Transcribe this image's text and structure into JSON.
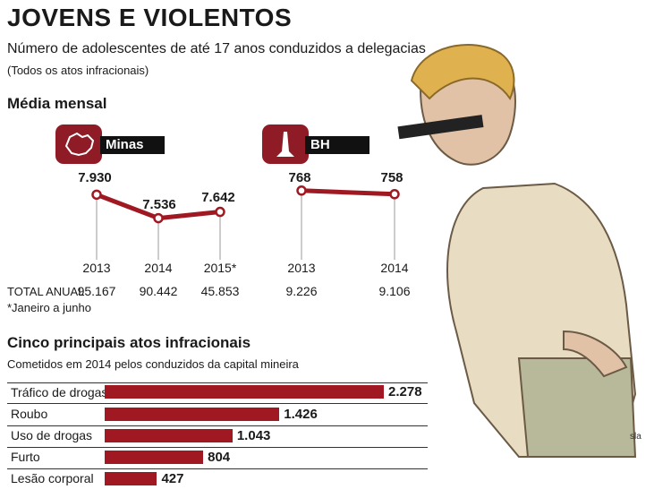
{
  "header": {
    "title": "JOVENS E VIOLENTOS",
    "subtitle": "Número de adolescentes de até 17 anos conduzidos a delegacias",
    "note": "(Todos os atos infracionais)"
  },
  "monthly": {
    "heading": "Média mensal",
    "total_label": "TOTAL ANUAL",
    "footnote": "*Janeiro a junho"
  },
  "ranking": {
    "heading": "Cinco principais atos infracionais",
    "subheading": "Cometidos em 2014 pelos conduzidos da capital mineira"
  },
  "illustration": {
    "signature": "sla"
  },
  "colors": {
    "accent": "#a01822",
    "emblem": "#8e1b26",
    "label_bg": "#111111"
  },
  "chart_data": [
    {
      "type": "line",
      "region": "Minas",
      "categories": [
        "2013",
        "2014",
        "2015*"
      ],
      "values": [
        7930,
        7536,
        7642
      ],
      "value_labels": [
        "7.930",
        "7.536",
        "7.642"
      ],
      "annual_totals": [
        "95.167",
        "90.442",
        "45.853"
      ]
    },
    {
      "type": "line",
      "region": "BH",
      "categories": [
        "2013",
        "2014"
      ],
      "values": [
        768,
        758
      ],
      "value_labels": [
        "768",
        "758"
      ],
      "annual_totals": [
        "9.226",
        "9.106"
      ]
    },
    {
      "type": "bar",
      "orientation": "horizontal",
      "categories": [
        "Tráfico de drogas",
        "Roubo",
        "Uso de drogas",
        "Furto",
        "Lesão corporal"
      ],
      "values": [
        2278,
        1426,
        1043,
        804,
        427
      ],
      "value_labels": [
        "2.278",
        "1.426",
        "1.043",
        "804",
        "427"
      ],
      "xlim": [
        0,
        2278
      ]
    }
  ]
}
